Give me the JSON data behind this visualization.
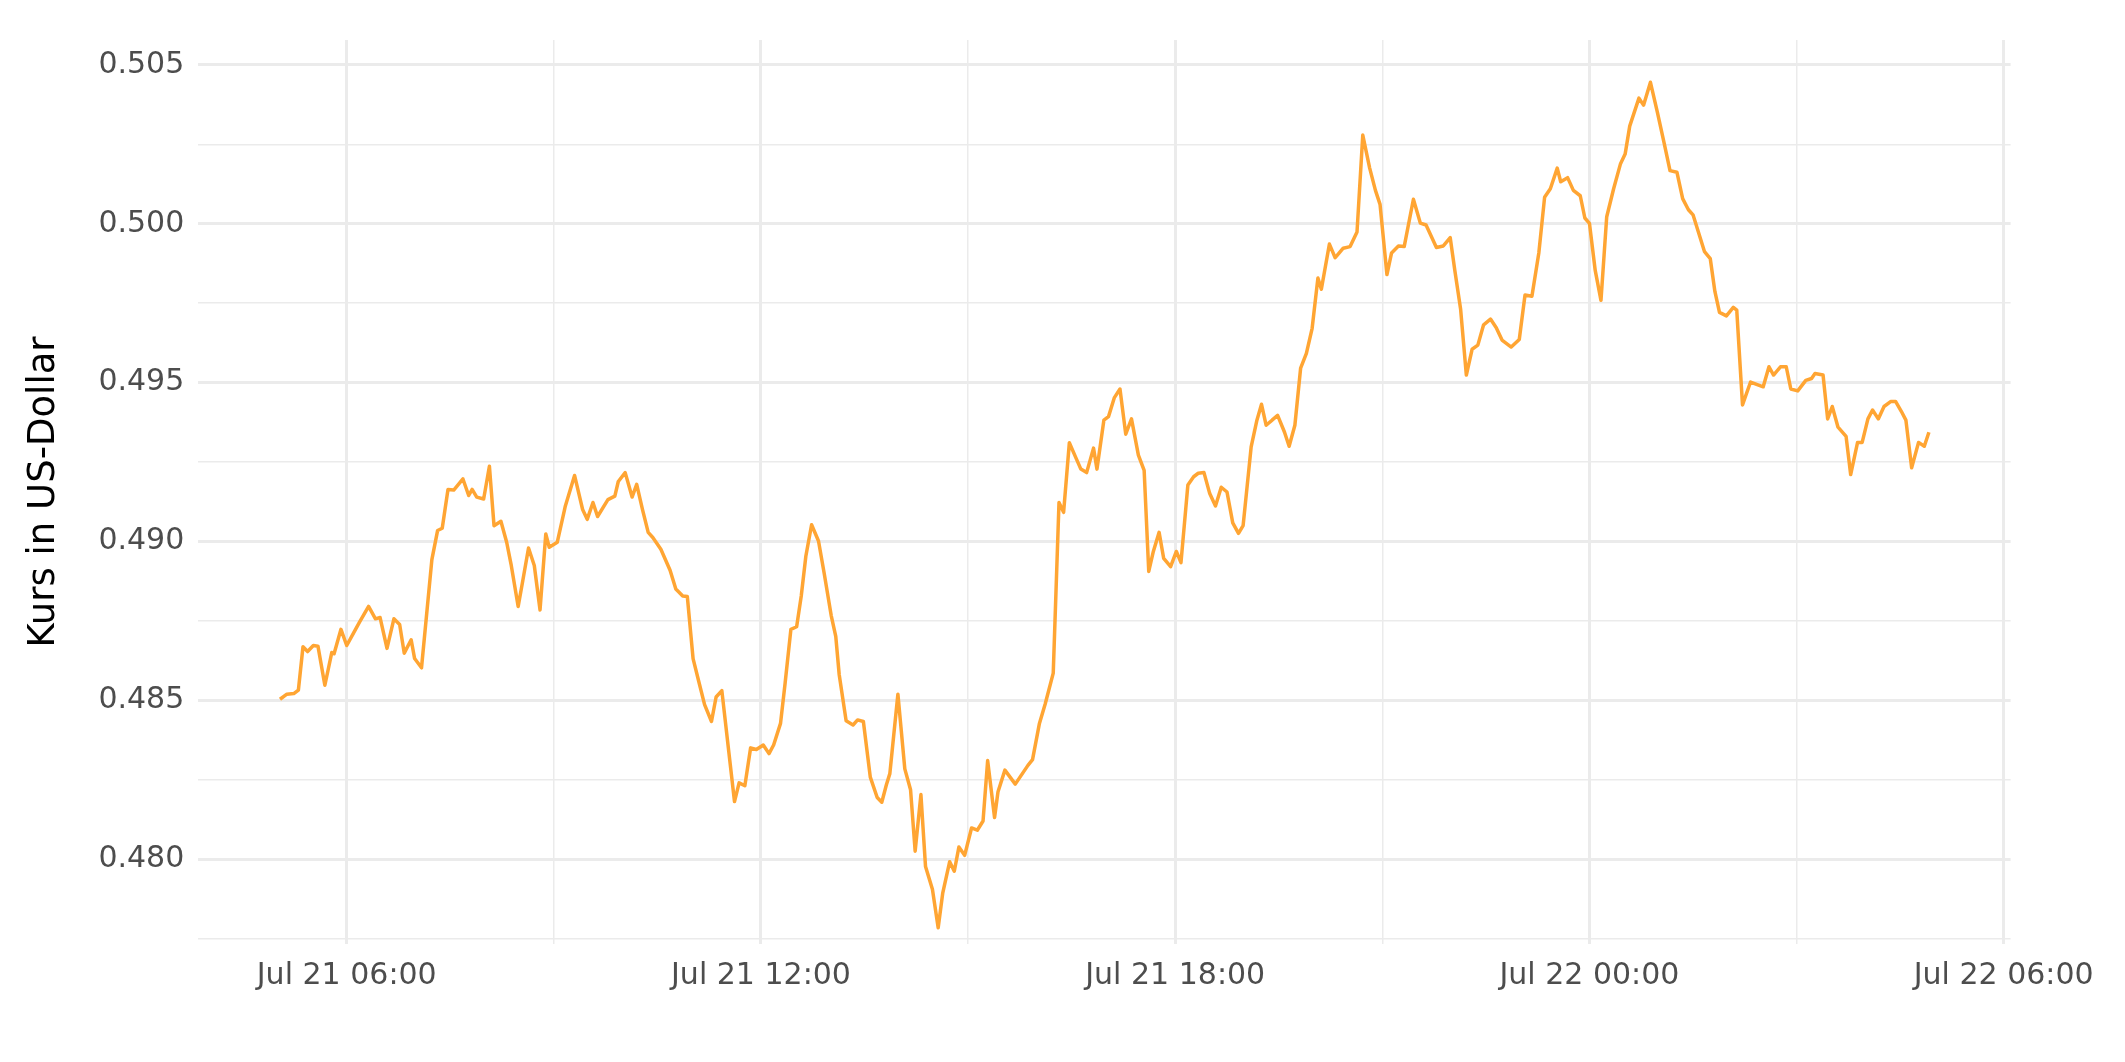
{
  "chart_data": {
    "type": "line",
    "ylabel": "Kurs in US-Dollar",
    "xlim": [
      "--07-21T03:51",
      "--07-22T06:06"
    ],
    "ylim": [
      0.47734,
      0.50578
    ],
    "xticks": [
      {
        "value": "--07-21T06:00",
        "label": "Jul 21 06:00"
      },
      {
        "value": "--07-21T09:00",
        "label": null
      },
      {
        "value": "--07-21T12:00",
        "label": "Jul 21 12:00"
      },
      {
        "value": "--07-21T15:00",
        "label": null
      },
      {
        "value": "--07-21T18:00",
        "label": "Jul 21 18:00"
      },
      {
        "value": "--07-21T21:00",
        "label": null
      },
      {
        "value": "--07-22T00:00",
        "label": "Jul 22 00:00"
      },
      {
        "value": "--07-22T03:00",
        "label": null
      },
      {
        "value": "--07-22T06:00",
        "label": "Jul 22 06:00"
      }
    ],
    "yticks": [
      {
        "value": 0.4775,
        "label": null
      },
      {
        "value": 0.48,
        "label": "0.480"
      },
      {
        "value": 0.4825,
        "label": null
      },
      {
        "value": 0.485,
        "label": "0.485"
      },
      {
        "value": 0.4875,
        "label": null
      },
      {
        "value": 0.49,
        "label": "0.490"
      },
      {
        "value": 0.4925,
        "label": null
      },
      {
        "value": 0.495,
        "label": "0.495"
      },
      {
        "value": 0.4975,
        "label": null
      },
      {
        "value": 0.5,
        "label": "0.500"
      },
      {
        "value": 0.5025,
        "label": null
      },
      {
        "value": 0.505,
        "label": "0.505"
      }
    ],
    "grid": true,
    "legend": false,
    "marker": "none",
    "line_style": "solid",
    "series": [
      {
        "color": "#ffa533",
        "x": [
          "--07-21T05:02",
          "--07-21T05:08",
          "--07-21T05:14",
          "--07-21T05:18",
          "--07-21T05:22",
          "--07-21T05:26",
          "--07-21T05:31",
          "--07-21T05:35",
          "--07-21T05:41",
          "--07-21T05:47",
          "--07-21T05:49",
          "--07-21T05:55",
          "--07-21T06:00",
          "--07-21T06:06",
          "--07-21T06:11",
          "--07-21T06:19",
          "--07-21T06:25",
          "--07-21T06:29",
          "--07-21T06:35",
          "--07-21T06:41",
          "--07-21T06:46",
          "--07-21T06:50",
          "--07-21T06:56",
          "--07-21T06:59",
          "--07-21T07:05",
          "--07-21T07:14",
          "--07-21T07:19",
          "--07-21T07:23",
          "--07-21T07:28",
          "--07-21T07:33",
          "--07-21T07:41",
          "--07-21T07:46",
          "--07-21T07:49",
          "--07-21T07:53",
          "--07-21T07:59",
          "--07-21T08:04",
          "--07-21T08:08",
          "--07-21T08:14",
          "--07-21T08:19",
          "--07-21T08:23",
          "--07-21T08:29",
          "--07-21T08:33",
          "--07-21T08:38",
          "--07-21T08:43",
          "--07-21T08:48",
          "--07-21T08:53",
          "--07-21T08:56",
          "--07-21T09:03",
          "--07-21T09:10",
          "--07-21T09:18",
          "--07-21T09:25",
          "--07-21T09:29",
          "--07-21T09:34",
          "--07-21T09:38",
          "--07-21T09:47",
          "--07-21T09:53",
          "--07-21T09:56",
          "--07-21T10:02",
          "--07-21T10:08",
          "--07-21T10:12",
          "--07-21T10:17",
          "--07-21T10:22",
          "--07-21T10:26",
          "--07-21T10:33",
          "--07-21T10:41",
          "--07-21T10:46",
          "--07-21T10:52",
          "--07-21T10:56",
          "--07-21T11:01",
          "--07-21T11:06",
          "--07-21T11:11",
          "--07-21T11:17",
          "--07-21T11:21",
          "--07-21T11:26",
          "--07-21T11:32",
          "--07-21T11:37",
          "--07-21T11:41",
          "--07-21T11:46",
          "--07-21T11:51",
          "--07-21T11:56",
          "--07-21T12:02",
          "--07-21T12:07",
          "--07-21T12:11",
          "--07-21T12:17",
          "--07-21T12:21",
          "--07-21T12:26",
          "--07-21T12:31",
          "--07-21T12:35",
          "--07-21T12:39",
          "--07-21T12:44",
          "--07-21T12:50",
          "--07-21T12:55",
          "--07-21T13:01",
          "--07-21T13:05",
          "--07-21T13:08",
          "--07-21T13:14",
          "--07-21T13:20",
          "--07-21T13:24",
          "--07-21T13:29",
          "--07-21T13:35",
          "--07-21T13:41",
          "--07-21T13:45",
          "--07-21T13:49",
          "--07-21T13:52",
          "--07-21T13:59",
          "--07-21T14:05",
          "--07-21T14:10",
          "--07-21T14:14",
          "--07-21T14:19",
          "--07-21T14:23",
          "--07-21T14:29",
          "--07-21T14:34",
          "--07-21T14:38",
          "--07-21T14:44",
          "--07-21T14:48",
          "--07-21T14:52",
          "--07-21T14:57",
          "--07-21T15:03",
          "--07-21T15:08",
          "--07-21T15:13",
          "--07-21T15:17",
          "--07-21T15:23",
          "--07-21T15:26",
          "--07-21T15:32",
          "--07-21T15:41",
          "--07-21T15:52",
          "--07-21T15:56",
          "--07-21T16:02",
          "--07-21T16:07",
          "--07-21T16:14",
          "--07-21T16:19",
          "--07-21T16:23",
          "--07-21T16:28",
          "--07-21T16:34",
          "--07-21T16:38",
          "--07-21T16:43",
          "--07-21T16:49",
          "--07-21T16:52",
          "--07-21T16:58",
          "--07-21T17:02",
          "--07-21T17:07",
          "--07-21T17:12",
          "--07-21T17:17",
          "--07-21T17:22",
          "--07-21T17:28",
          "--07-21T17:33",
          "--07-21T17:37",
          "--07-21T17:41",
          "--07-21T17:46",
          "--07-21T17:50",
          "--07-21T17:56",
          "--07-21T18:01",
          "--07-21T18:05",
          "--07-21T18:11",
          "--07-21T18:16",
          "--07-21T18:20",
          "--07-21T18:25",
          "--07-21T18:30",
          "--07-21T18:35",
          "--07-21T18:40",
          "--07-21T18:45",
          "--07-21T18:50",
          "--07-21T18:55",
          "--07-21T18:59",
          "--07-21T19:06",
          "--07-21T19:11",
          "--07-21T19:15",
          "--07-21T19:19",
          "--07-21T19:29",
          "--07-21T19:35",
          "--07-21T19:39",
          "--07-21T19:44",
          "--07-21T19:49",
          "--07-21T19:54",
          "--07-21T19:59",
          "--07-21T20:04",
          "--07-21T20:07",
          "--07-21T20:14",
          "--07-21T20:19",
          "--07-21T20:26",
          "--07-21T20:32",
          "--07-21T20:38",
          "--07-21T20:43",
          "--07-21T20:49",
          "--07-21T20:54",
          "--07-21T20:58",
          "--07-21T21:04",
          "--07-21T21:08",
          "--07-21T21:14",
          "--07-21T21:19",
          "--07-21T21:27",
          "--07-21T21:33",
          "--07-21T21:38",
          "--07-21T21:47",
          "--07-21T21:53",
          "--07-21T21:59",
          "--07-21T22:03",
          "--07-21T22:08",
          "--07-21T22:13",
          "--07-21T22:18",
          "--07-21T22:23",
          "--07-21T22:28",
          "--07-21T22:34",
          "--07-21T22:39",
          "--07-21T22:44",
          "--07-21T22:52",
          "--07-21T22:59",
          "--07-21T23:04",
          "--07-21T23:10",
          "--07-21T23:16",
          "--07-21T23:21",
          "--07-21T23:26",
          "--07-21T23:32",
          "--07-21T23:35",
          "--07-21T23:41",
          "--07-21T23:46",
          "--07-21T23:52",
          "--07-21T23:56",
          "--07-22T00:00",
          "--07-22T00:05",
          "--07-22T00:10",
          "--07-22T00:15",
          "--07-22T00:21",
          "--07-22T00:27",
          "--07-22T00:31",
          "--07-22T00:35",
          "--07-22T00:43",
          "--07-22T00:47",
          "--07-22T00:53",
          "--07-22T00:59",
          "--07-22T01:05",
          "--07-22T01:10",
          "--07-22T01:16",
          "--07-22T01:21",
          "--07-22T01:26",
          "--07-22T01:30",
          "--07-22T01:40",
          "--07-22T01:45",
          "--07-22T01:49",
          "--07-22T01:53",
          "--07-22T01:59",
          "--07-22T02:05",
          "--07-22T02:08",
          "--07-22T02:13",
          "--07-22T02:20",
          "--07-22T02:31",
          "--07-22T02:36",
          "--07-22T02:40",
          "--07-22T02:46",
          "--07-22T02:51",
          "--07-22T02:55",
          "--07-22T03:01",
          "--07-22T03:08",
          "--07-22T03:13",
          "--07-22T03:16",
          "--07-22T03:23",
          "--07-22T03:27",
          "--07-22T03:31",
          "--07-22T03:36",
          "--07-22T03:43",
          "--07-22T03:47",
          "--07-22T03:53",
          "--07-22T03:57",
          "--07-22T04:02",
          "--07-22T04:06",
          "--07-22T04:11",
          "--07-22T04:16",
          "--07-22T04:22",
          "--07-22T04:26",
          "--07-22T04:31",
          "--07-22T04:35",
          "--07-22T04:40",
          "--07-22T04:46",
          "--07-22T04:51",
          "--07-22T04:55"
        ],
        "values": [
          0.48504,
          0.4852,
          0.48522,
          0.48533,
          0.48669,
          0.48654,
          0.48673,
          0.48671,
          0.48548,
          0.48651,
          0.48647,
          0.48724,
          0.48673,
          0.48713,
          0.48746,
          0.48796,
          0.48757,
          0.48761,
          0.48664,
          0.48757,
          0.48739,
          0.48649,
          0.48691,
          0.48632,
          0.48603,
          0.48943,
          0.49035,
          0.49042,
          0.49164,
          0.49162,
          0.49197,
          0.49145,
          0.49164,
          0.4914,
          0.49134,
          0.49237,
          0.4905,
          0.49064,
          0.48998,
          0.48925,
          0.48796,
          0.48877,
          0.4898,
          0.48925,
          0.48785,
          0.49024,
          0.48982,
          0.48998,
          0.49112,
          0.49208,
          0.49101,
          0.4907,
          0.49123,
          0.49079,
          0.49132,
          0.49143,
          0.49189,
          0.49217,
          0.4914,
          0.4918,
          0.49101,
          0.49029,
          0.49013,
          0.48976,
          0.4891,
          0.48851,
          0.48829,
          0.48827,
          0.48632,
          0.48559,
          0.48487,
          0.48434,
          0.48511,
          0.48531,
          0.4834,
          0.48182,
          0.48241,
          0.48232,
          0.48351,
          0.48346,
          0.4836,
          0.48333,
          0.4836,
          0.48428,
          0.48555,
          0.48724,
          0.48732,
          0.48829,
          0.48954,
          0.49053,
          0.49002,
          0.48899,
          0.48768,
          0.48702,
          0.48581,
          0.48436,
          0.48423,
          0.48439,
          0.48434,
          0.48259,
          0.48195,
          0.4818,
          0.48235,
          0.4827,
          0.4852,
          0.48285,
          0.48219,
          0.48026,
          0.48204,
          0.47978,
          0.47906,
          0.47785,
          0.47895,
          0.47993,
          0.47963,
          0.48039,
          0.48013,
          0.48099,
          0.48092,
          0.48121,
          0.48311,
          0.48132,
          0.48213,
          0.48281,
          0.48237,
          0.48296,
          0.48314,
          0.48428,
          0.48489,
          0.48586,
          0.49123,
          0.49092,
          0.49311,
          0.49261,
          0.49228,
          0.49217,
          0.49294,
          0.49228,
          0.49382,
          0.49393,
          0.49452,
          0.4948,
          0.49338,
          0.49386,
          0.49272,
          0.49224,
          0.48906,
          0.48969,
          0.49029,
          0.48947,
          0.48921,
          0.48969,
          0.48934,
          0.49178,
          0.49204,
          0.49215,
          0.49217,
          0.49151,
          0.49112,
          0.49171,
          0.49156,
          0.49059,
          0.49026,
          0.4905,
          0.49298,
          0.49382,
          0.49432,
          0.49366,
          0.49397,
          0.49344,
          0.493,
          0.49366,
          0.49546,
          0.49592,
          0.49671,
          0.49829,
          0.49794,
          0.49936,
          0.49893,
          0.49923,
          0.49928,
          0.49974,
          0.50279,
          0.50175,
          0.50105,
          0.50061,
          0.4984,
          0.49908,
          0.4993,
          0.49928,
          0.50077,
          0.50002,
          0.49996,
          0.49925,
          0.4993,
          0.49956,
          0.49853,
          0.49732,
          0.49524,
          0.49605,
          0.49618,
          0.49682,
          0.497,
          0.49673,
          0.49634,
          0.49612,
          0.49636,
          0.49776,
          0.49772,
          0.49908,
          0.50083,
          0.5011,
          0.50175,
          0.50132,
          0.50145,
          0.50105,
          0.50088,
          0.50018,
          0.50001,
          0.49853,
          0.49759,
          0.50022,
          0.5011,
          0.50189,
          0.50219,
          0.50307,
          0.50395,
          0.50373,
          0.50445,
          0.50351,
          0.50252,
          0.50167,
          0.50162,
          0.50079,
          0.50044,
          0.50028,
          0.49912,
          0.4989,
          0.49787,
          0.49721,
          0.4971,
          0.49737,
          0.49728,
          0.4943,
          0.49502,
          0.49487,
          0.4955,
          0.49524,
          0.4955,
          0.4955,
          0.4948,
          0.49474,
          0.49507,
          0.49513,
          0.49529,
          0.49524,
          0.49386,
          0.49425,
          0.4936,
          0.49331,
          0.49211,
          0.49312,
          0.49312,
          0.49386,
          0.49414,
          0.49386,
          0.49425,
          0.49441,
          0.49441,
          0.4941,
          0.49382,
          0.49232,
          0.49312,
          0.493,
          0.49344
        ]
      }
    ]
  }
}
